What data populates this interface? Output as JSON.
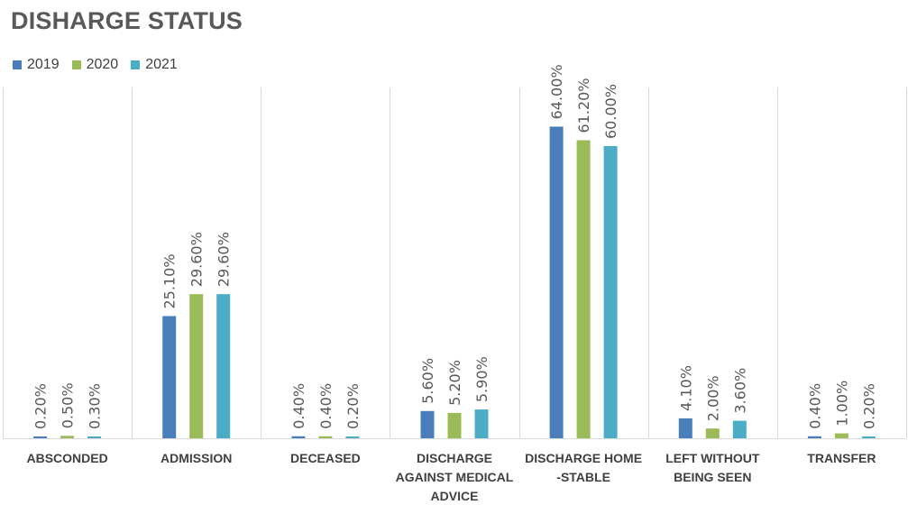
{
  "chart_data": {
    "type": "bar",
    "title": "DISHARGE STATUS",
    "xlabel": "",
    "ylabel": "",
    "categories": [
      "ABSCONDED",
      "ADMISSION",
      "DECEASED",
      "DISCHARGE AGAINST MEDICAL ADVICE",
      "DISCHARGE HOME -STABLE",
      "LEFT WITHOUT BEING SEEN",
      "TRANSFER"
    ],
    "category_lines": [
      [
        "ABSCONDED"
      ],
      [
        "ADMISSION"
      ],
      [
        "DECEASED"
      ],
      [
        "DISCHARGE",
        "AGAINST MEDICAL",
        "ADVICE"
      ],
      [
        "DISCHARGE HOME",
        "-STABLE"
      ],
      [
        "LEFT WITHOUT",
        "BEING SEEN"
      ],
      [
        "TRANSFER"
      ]
    ],
    "series": [
      {
        "name": "2019",
        "color": "#4A7EBB",
        "values": [
          0.2,
          25.1,
          0.4,
          5.6,
          64.0,
          4.1,
          0.4
        ],
        "labels": [
          "0.20%",
          "25.10%",
          "0.40%",
          "5.60%",
          "64.00%",
          "4.10%",
          "0.40%"
        ]
      },
      {
        "name": "2020",
        "color": "#9BBB59",
        "values": [
          0.5,
          29.6,
          0.4,
          5.2,
          61.2,
          2.0,
          1.0
        ],
        "labels": [
          "0.50%",
          "29.60%",
          "0.40%",
          "5.20%",
          "61.20%",
          "2.00%",
          "1.00%"
        ]
      },
      {
        "name": "2021",
        "color": "#4BACC6",
        "values": [
          0.3,
          29.6,
          0.2,
          5.9,
          60.0,
          3.6,
          0.2
        ],
        "labels": [
          "0.30%",
          "29.60%",
          "0.20%",
          "5.90%",
          "60.00%",
          "3.60%",
          "0.20%"
        ]
      }
    ],
    "ylim": [
      0,
      70
    ],
    "grid": "vertical category separators",
    "legend": "top-left"
  }
}
